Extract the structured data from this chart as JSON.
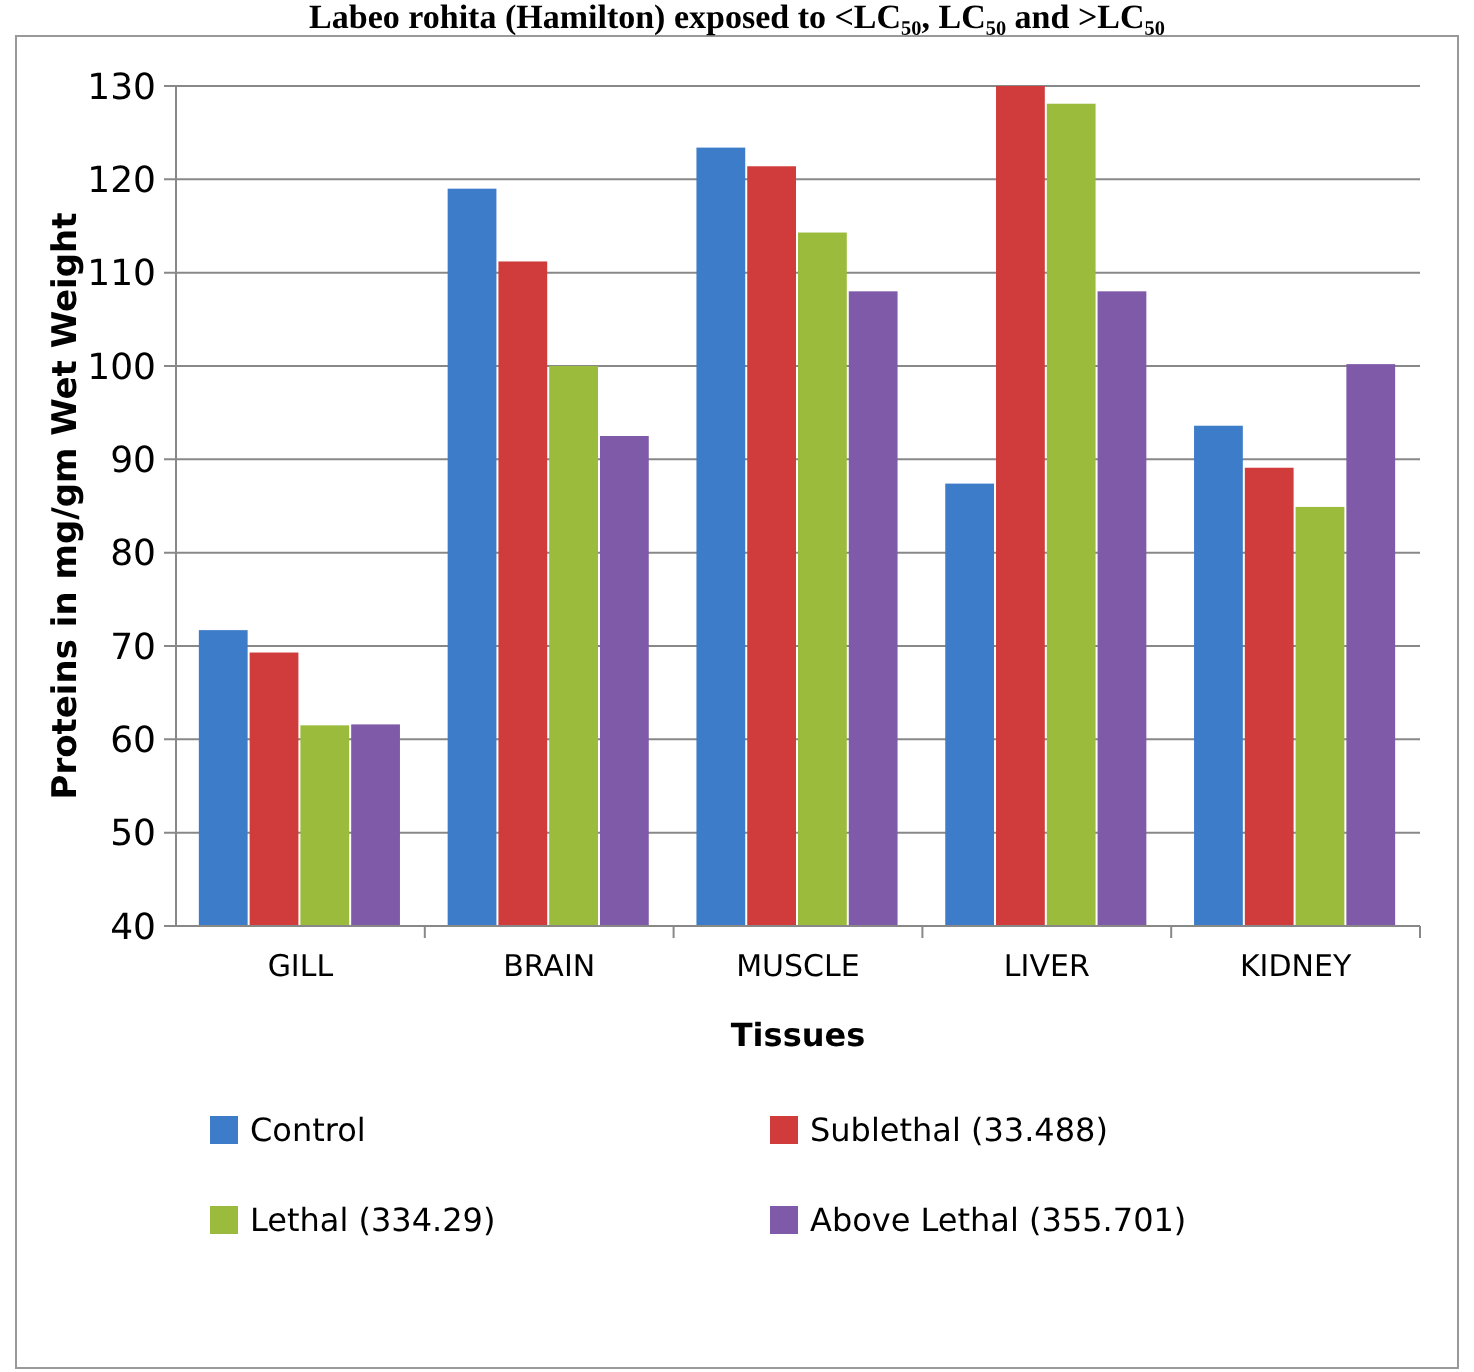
{
  "chart_data": {
    "type": "bar",
    "title": "Labeo rohita (Hamilton) exposed to <LC₅₀, LC₅₀ and >LC₅₀",
    "xlabel": "Tissues",
    "ylabel": "Proteins in mg/gm Wet Weight",
    "categories": [
      "GILL",
      "BRAIN",
      "MUSCLE",
      "LIVER",
      "KIDNEY"
    ],
    "series": [
      {
        "name": "Control",
        "color": "#3d7cc9",
        "values": [
          71.7,
          119.0,
          123.4,
          87.4,
          93.6
        ]
      },
      {
        "name": "Sublethal (33.488)",
        "color": "#d03b3b",
        "values": [
          69.3,
          111.2,
          121.4,
          130,
          89.1
        ]
      },
      {
        "name": "Lethal (334.29)",
        "color": "#9bbb3c",
        "values": [
          61.5,
          100.0,
          114.3,
          128.1,
          84.9
        ]
      },
      {
        "name": "Above Lethal (355.701)",
        "color": "#7f5aa8",
        "values": [
          61.6,
          92.5,
          108.0,
          108.0,
          100.2
        ]
      }
    ],
    "ylim": [
      40,
      130
    ],
    "yticks": [
      40,
      50,
      60,
      70,
      80,
      90,
      100,
      110,
      120,
      130
    ],
    "grid": "y",
    "legend": "bottom"
  }
}
